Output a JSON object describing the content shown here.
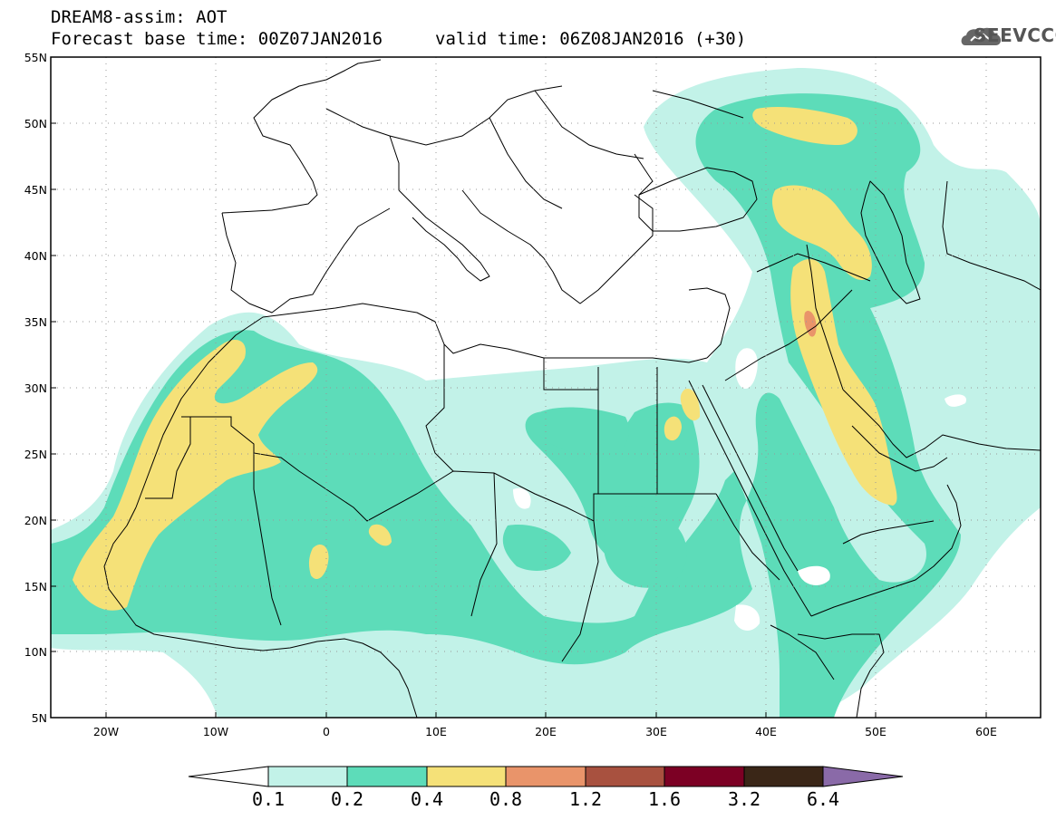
{
  "title": {
    "line1": "DREAM8-assim: AOT",
    "line2": "Forecast base time: 00Z07JAN2016",
    "valid": "valid time: 06Z08JAN2016 (+30)"
  },
  "logo": {
    "text": "SEEVCCC",
    "icon": "cloud-logo-icon"
  },
  "axes": {
    "lat_labels": [
      "55N",
      "50N",
      "45N",
      "40N",
      "35N",
      "30N",
      "25N",
      "20N",
      "15N",
      "10N",
      "5N"
    ],
    "lon_labels": [
      "20W",
      "10W",
      "0",
      "10E",
      "20E",
      "30E",
      "40E",
      "50E",
      "60E"
    ]
  },
  "legend": {
    "levels": [
      "0.1",
      "0.2",
      "0.4",
      "0.8",
      "1.2",
      "1.6",
      "3.2",
      "6.4"
    ],
    "colors": [
      "#c2f2e8",
      "#5ddcb9",
      "#f5e178",
      "#e9946a",
      "#a8513f",
      "#7c0024",
      "#3a2617",
      "#8a6aa8"
    ]
  },
  "colors": {
    "c1": "#c2f2e8",
    "c2": "#5ddcb9",
    "c3": "#f5e178",
    "c4": "#e9946a"
  }
}
